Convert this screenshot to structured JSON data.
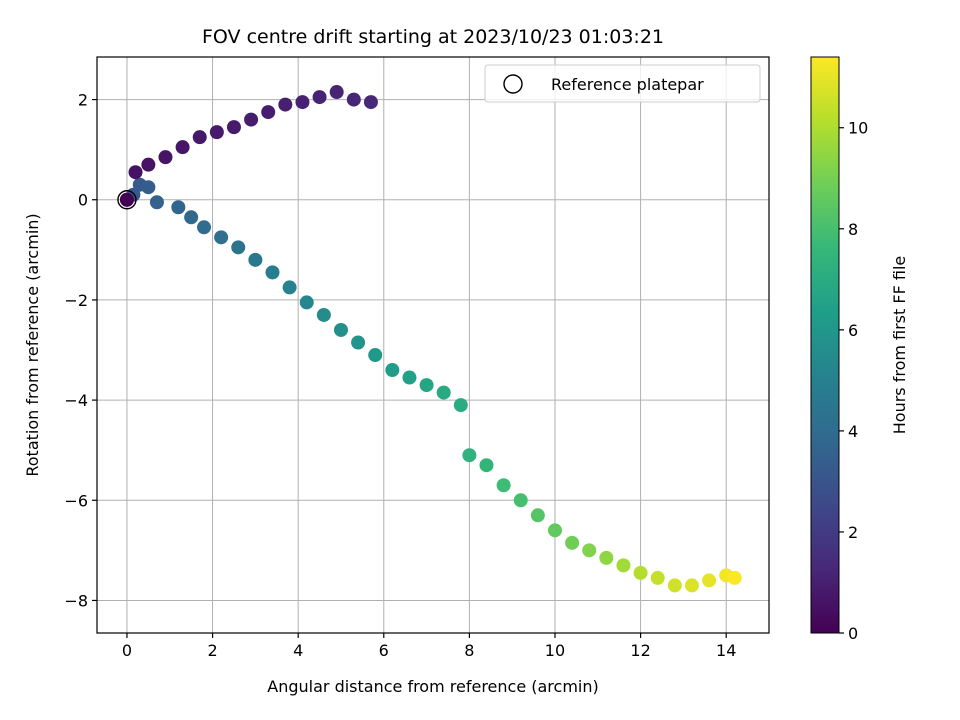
{
  "chart_data": {
    "type": "scatter",
    "title": "FOV centre drift starting at 2023/10/23 01:03:21",
    "xlabel": "Angular distance from reference (arcmin)",
    "ylabel": "Rotation from reference (arcmin)",
    "xlim": [
      -0.7,
      15.0
    ],
    "ylim": [
      -8.65,
      2.85
    ],
    "xticks": [
      0,
      2,
      4,
      6,
      8,
      10,
      12,
      14
    ],
    "yticks": [
      -8,
      -6,
      -4,
      -2,
      0,
      2
    ],
    "xtick_labels": [
      "0",
      "2",
      "4",
      "6",
      "8",
      "10",
      "12",
      "14"
    ],
    "ytick_labels": [
      "−8",
      "−6",
      "−4",
      "−2",
      "0",
      "2"
    ],
    "grid": true,
    "legend": {
      "placement": "top-right",
      "entries": [
        "Reference platepar"
      ]
    },
    "colorbar": {
      "label": "Hours from first FF file",
      "range": [
        0,
        11.4
      ],
      "ticks": [
        0,
        2,
        4,
        6,
        8,
        10
      ],
      "tick_labels": [
        "0",
        "2",
        "4",
        "6",
        "8",
        "10"
      ],
      "colormap": "viridis",
      "colormap_stops": [
        "#440154",
        "#482878",
        "#3e4989",
        "#31688e",
        "#26828e",
        "#1f9e89",
        "#35b779",
        "#6ece58",
        "#b5de2b",
        "#fde725"
      ]
    },
    "reference_point": {
      "x": 0,
      "y": 0,
      "hours": 0
    },
    "series": [
      {
        "name": "FOV centre drift",
        "points": [
          [
            0.0,
            0.0,
            0.0
          ],
          [
            0.15,
            0.1,
            3.1
          ],
          [
            0.3,
            0.3,
            3.2
          ],
          [
            0.5,
            0.25,
            3.3
          ],
          [
            0.7,
            -0.05,
            3.5
          ],
          [
            1.2,
            -0.15,
            3.7
          ],
          [
            1.5,
            -0.35,
            3.8
          ],
          [
            1.8,
            -0.55,
            4.0
          ],
          [
            2.2,
            -0.75,
            4.2
          ],
          [
            2.6,
            -0.95,
            4.4
          ],
          [
            3.0,
            -1.2,
            4.6
          ],
          [
            3.4,
            -1.45,
            4.8
          ],
          [
            3.8,
            -1.75,
            5.0
          ],
          [
            4.2,
            -2.05,
            5.3
          ],
          [
            4.6,
            -2.3,
            5.5
          ],
          [
            5.0,
            -2.6,
            5.7
          ],
          [
            5.4,
            -2.85,
            5.9
          ],
          [
            5.8,
            -3.1,
            6.1
          ],
          [
            6.2,
            -3.4,
            6.3
          ],
          [
            6.6,
            -3.55,
            6.5
          ],
          [
            7.0,
            -3.7,
            6.7
          ],
          [
            7.4,
            -3.85,
            6.9
          ],
          [
            7.8,
            -4.1,
            7.0
          ],
          [
            8.0,
            -5.1,
            7.3
          ],
          [
            8.4,
            -5.3,
            7.5
          ],
          [
            8.8,
            -5.7,
            7.8
          ],
          [
            9.2,
            -6.0,
            8.0
          ],
          [
            9.6,
            -6.3,
            8.3
          ],
          [
            10.0,
            -6.6,
            8.6
          ],
          [
            10.4,
            -6.85,
            8.9
          ],
          [
            10.8,
            -7.0,
            9.2
          ],
          [
            11.2,
            -7.15,
            9.5
          ],
          [
            11.6,
            -7.3,
            9.8
          ],
          [
            12.0,
            -7.45,
            10.1
          ],
          [
            12.4,
            -7.55,
            10.4
          ],
          [
            12.8,
            -7.7,
            10.6
          ],
          [
            13.2,
            -7.7,
            10.8
          ],
          [
            13.6,
            -7.6,
            11.0
          ],
          [
            14.0,
            -7.5,
            11.2
          ],
          [
            14.2,
            -7.55,
            11.35
          ],
          [
            0.2,
            0.55,
            0.55
          ],
          [
            0.5,
            0.7,
            0.6
          ],
          [
            0.9,
            0.85,
            0.65
          ],
          [
            1.3,
            1.05,
            0.7
          ],
          [
            1.7,
            1.25,
            0.75
          ],
          [
            2.1,
            1.35,
            0.8
          ],
          [
            2.5,
            1.45,
            0.85
          ],
          [
            2.9,
            1.6,
            0.9
          ],
          [
            3.3,
            1.75,
            0.95
          ],
          [
            3.7,
            1.9,
            1.0
          ],
          [
            4.1,
            1.95,
            1.05
          ],
          [
            4.5,
            2.05,
            1.1
          ],
          [
            4.9,
            2.15,
            1.15
          ],
          [
            5.3,
            2.0,
            1.2
          ],
          [
            5.7,
            1.95,
            1.3
          ]
        ]
      }
    ]
  }
}
